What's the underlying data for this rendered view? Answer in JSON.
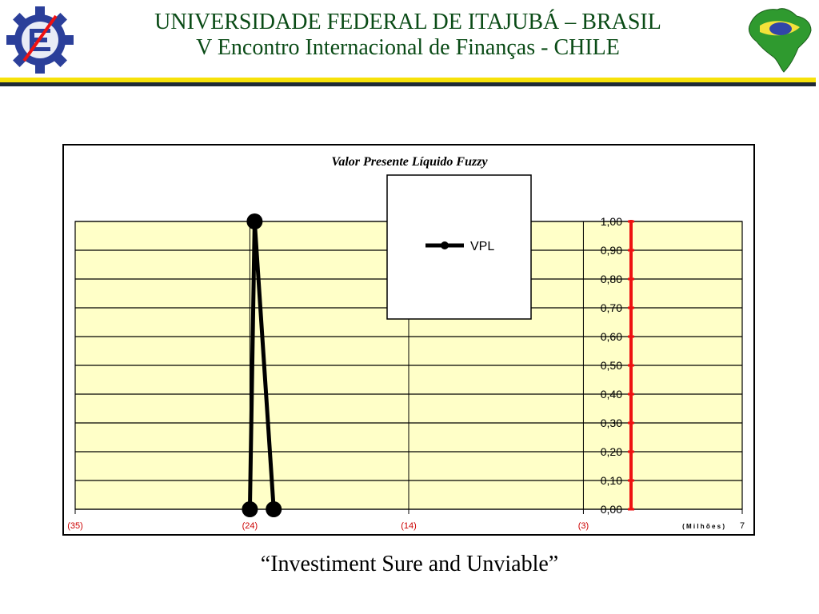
{
  "header": {
    "line1": "UNIVERSIDADE FEDERAL DE ITAJUBÁ – BRASIL",
    "line2": "V Encontro Internacional de Finanças - CHILE"
  },
  "footer": {
    "caption": "“Investiment Sure and Unviable”"
  },
  "colors": {
    "header_text": "#0a4b16",
    "plot_background": "#ffffc8",
    "series_line": "#000000",
    "vertical_axis": "#ee1111",
    "tick_label_x": "#cc0000",
    "rule_yellow": "#f7e20a",
    "rule_dark": "#1e2a36"
  },
  "icons": {
    "left_logo": "unifei-gear-logo-icon",
    "right_logo": "brazil-map-icon"
  },
  "chart_data": {
    "type": "line",
    "title": "Valor Presente Líquido Fuzzy",
    "x_unit_label": "( M i l h õ e s )",
    "xlim": [
      -35,
      7
    ],
    "ylim": [
      0,
      1
    ],
    "x_ticks": [
      {
        "value": -35,
        "label": "(35)"
      },
      {
        "value": -24,
        "label": "(24)"
      },
      {
        "value": -14,
        "label": "(14)"
      },
      {
        "value": -3,
        "label": "(3)"
      },
      {
        "value": 7,
        "label": "7"
      }
    ],
    "y_ticks": [
      "0,00",
      "0,10",
      "0,20",
      "0,30",
      "0,40",
      "0,50",
      "0,60",
      "0,70",
      "0,80",
      "0,90",
      "1,00"
    ],
    "y_axis_at_x": 0,
    "grid": true,
    "legend": {
      "position": "top-center",
      "entries": [
        "VPL"
      ]
    },
    "series": [
      {
        "name": "VPL",
        "x": [
          -24,
          -23.7,
          -22.5
        ],
        "y": [
          0,
          1,
          0
        ]
      }
    ]
  }
}
